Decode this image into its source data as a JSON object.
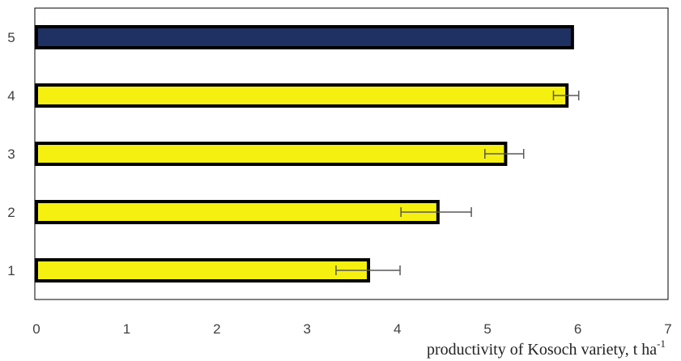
{
  "chart_data": {
    "type": "bar",
    "orientation": "horizontal",
    "categories": [
      "1",
      "2",
      "3",
      "4",
      "5"
    ],
    "values": [
      3.68,
      4.45,
      5.2,
      5.88,
      5.94
    ],
    "error_minus": [
      0.36,
      0.41,
      0.23,
      0.15,
      0.0
    ],
    "error_plus": [
      0.35,
      0.37,
      0.2,
      0.13,
      0.0
    ],
    "bar_colors": [
      "#f5f00f",
      "#f5f00f",
      "#f5f00f",
      "#f5f00f",
      "#1f3163"
    ],
    "bar_outline": "#000000",
    "xlim": [
      0,
      7
    ],
    "x_ticks": [
      "0",
      "1",
      "2",
      "3",
      "4",
      "5",
      "6",
      "7"
    ],
    "xlabel": "productivity of  Kosoch variety, t ha",
    "xlabel_sup": "-1",
    "grid": false,
    "legend": "none"
  }
}
